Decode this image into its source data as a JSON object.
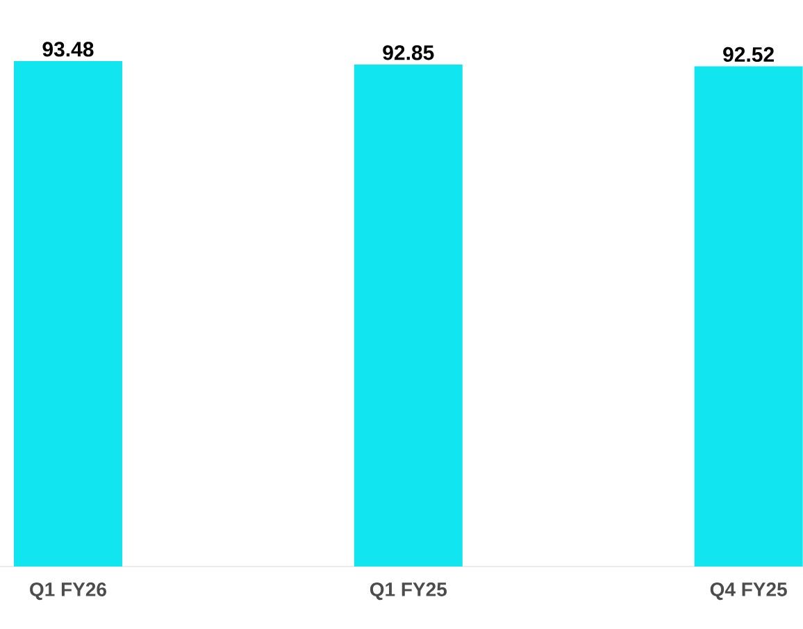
{
  "chart_data": {
    "type": "bar",
    "categories": [
      "Q1 FY26",
      "Q1 FY25",
      "Q4 FY25"
    ],
    "values": [
      93.48,
      92.85,
      92.52
    ],
    "color": "#11e5f0",
    "data_labels": true
  }
}
